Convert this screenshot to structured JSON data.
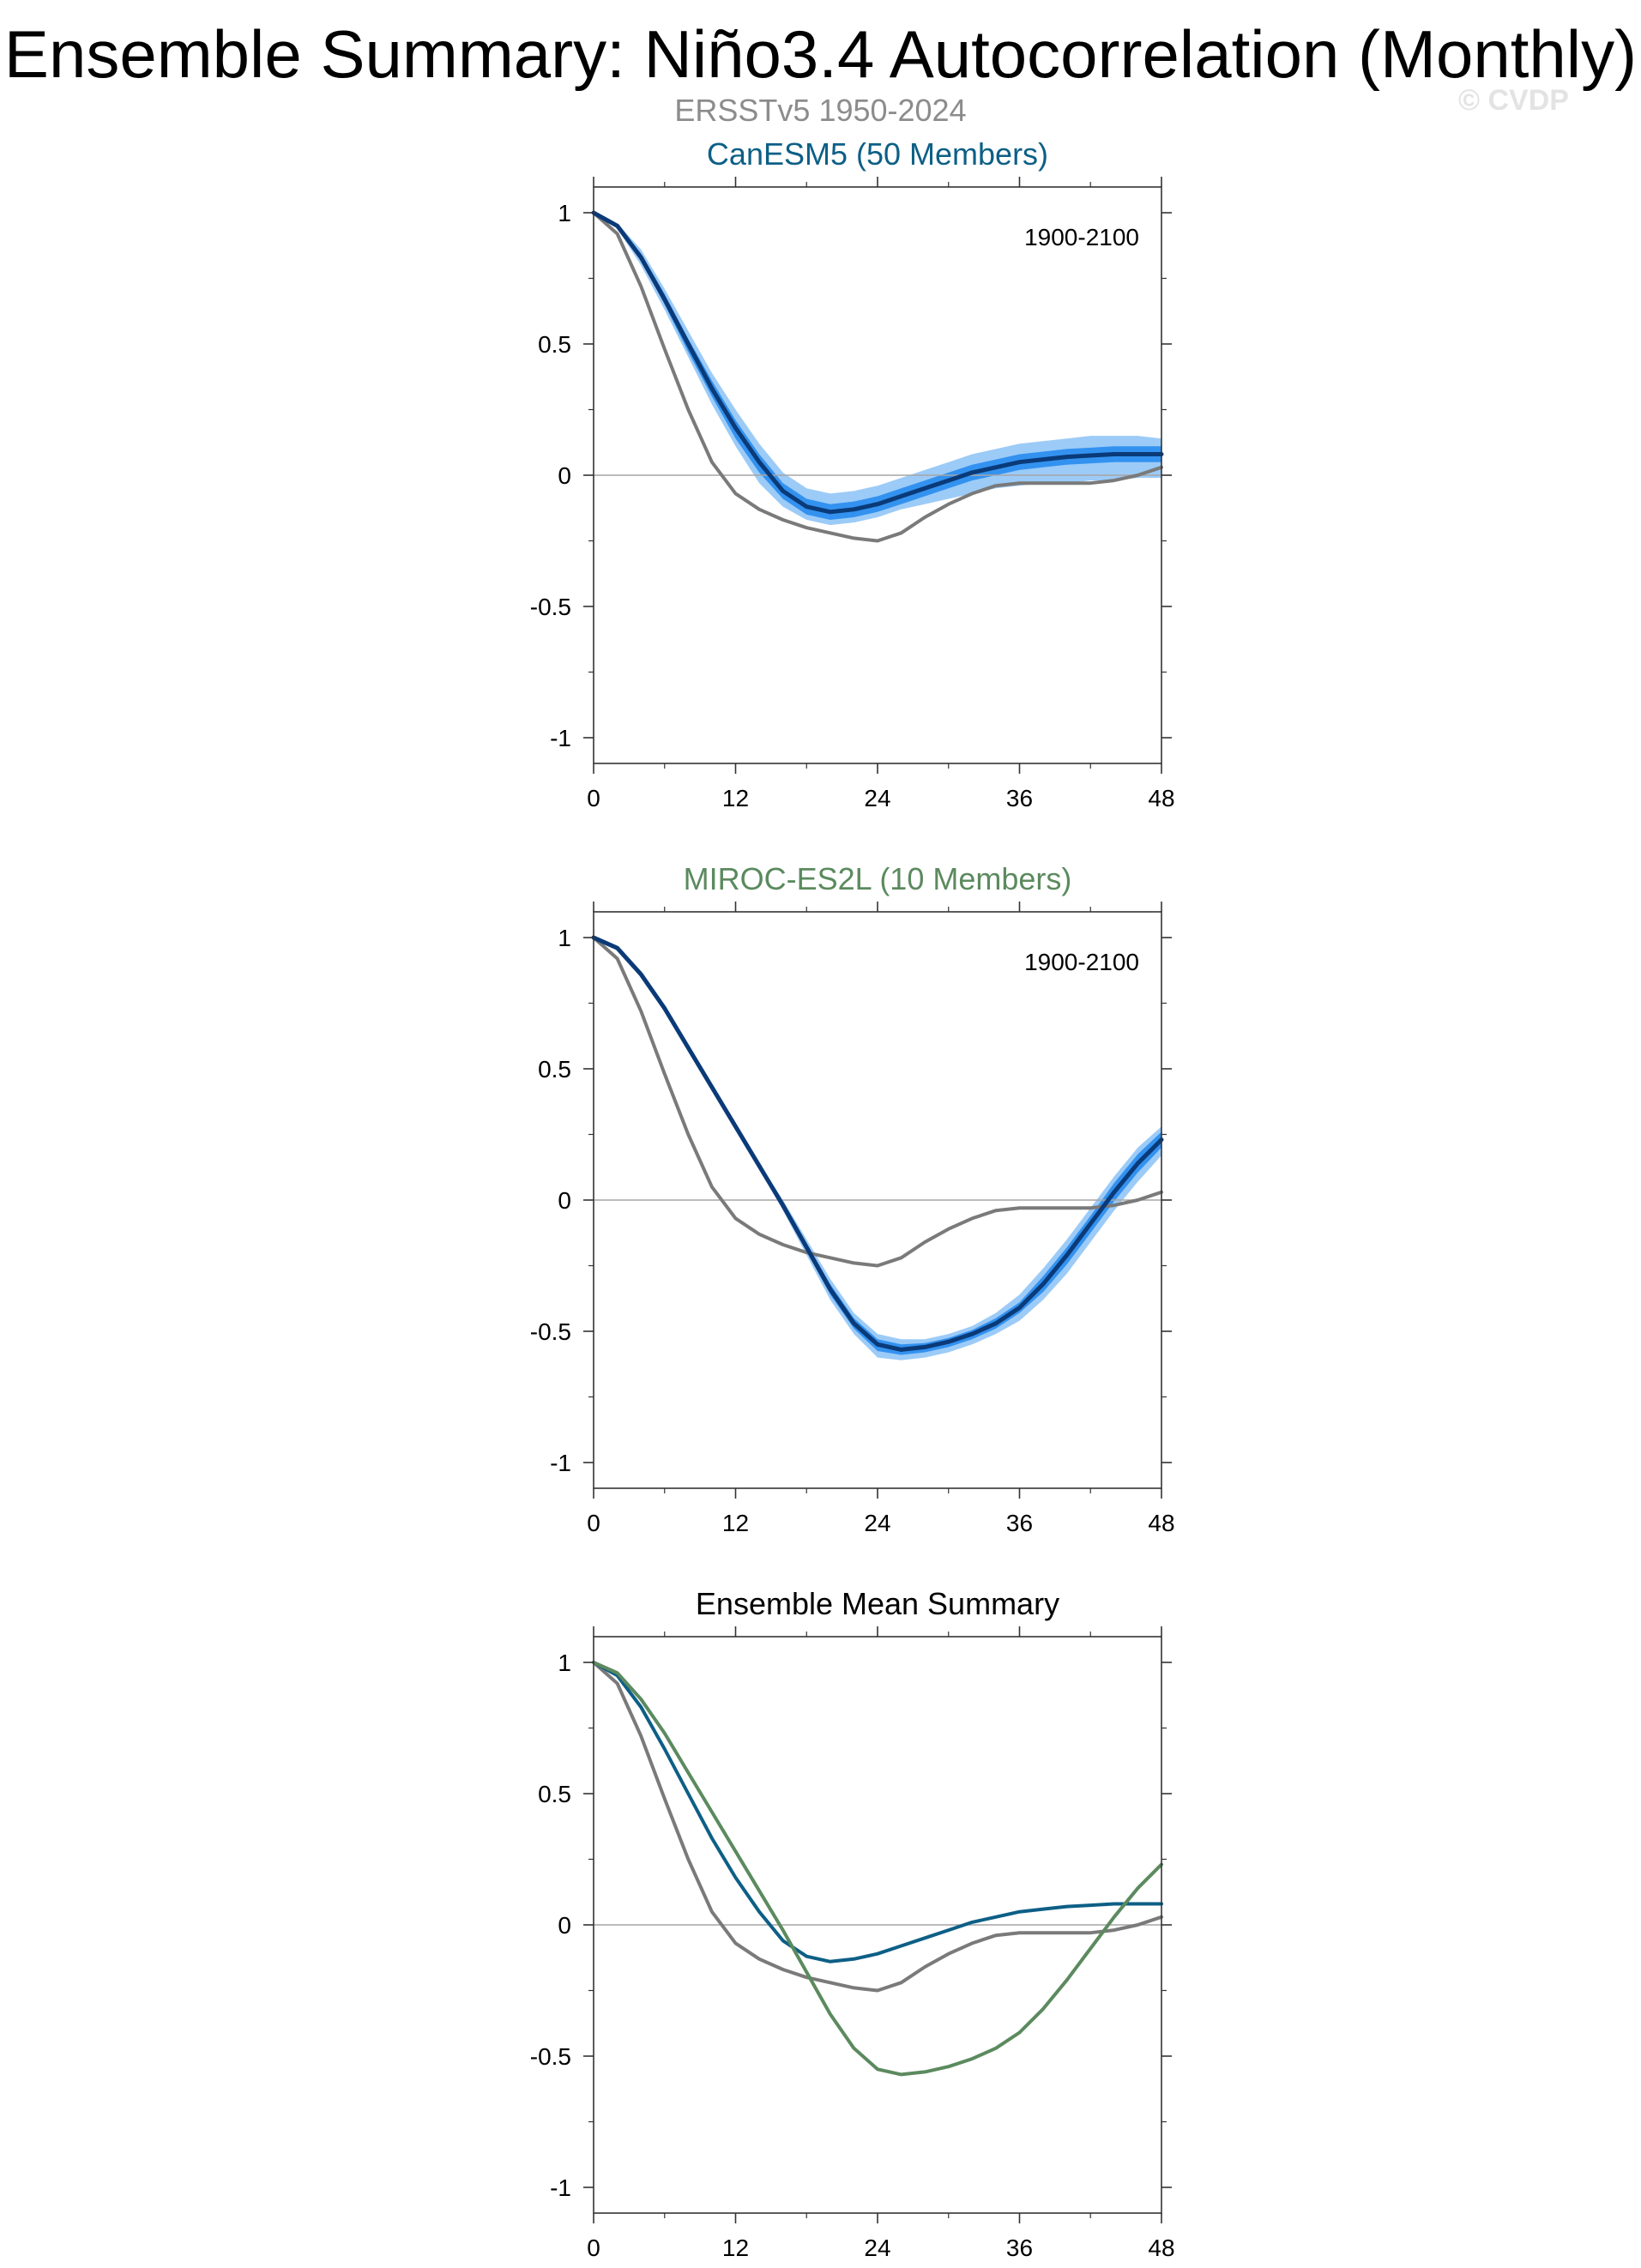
{
  "header": {
    "title": "Ensemble Summary: Niño3.4 Autocorrelation (Monthly)",
    "subtitle": "ERSSTv5 1950-2024",
    "watermark": "© CVDP"
  },
  "colors": {
    "observed": "#7a7a7a",
    "canesm5": "#0d5f86",
    "miroc": "#5b8a5e",
    "ens_mean_line": "#0a3a78",
    "spread_outer": "#9ccbf7",
    "spread_inner": "#3392f0",
    "zero_line": "#a6a6a6"
  },
  "chart_data": [
    {
      "type": "line",
      "title": "CanESM5 (50 Members)",
      "title_color": "#0d5f86",
      "period_label": "1900-2100",
      "xlim": [
        0,
        48
      ],
      "ylim": [
        -1,
        1
      ],
      "x_ticks": [
        0,
        12,
        24,
        36,
        48
      ],
      "y_ticks": [
        1,
        0.5,
        0,
        -0.5,
        -1
      ],
      "y_tick_labels": [
        "1",
        "0.5",
        "0",
        "-0.5",
        "-1"
      ],
      "x": [
        0,
        2,
        4,
        6,
        8,
        10,
        12,
        14,
        16,
        18,
        20,
        22,
        24,
        26,
        28,
        30,
        32,
        34,
        36,
        38,
        40,
        42,
        44,
        46,
        48
      ],
      "series": [
        {
          "key": "observed",
          "values": [
            1.0,
            0.92,
            0.72,
            0.48,
            0.25,
            0.05,
            -0.07,
            -0.13,
            -0.17,
            -0.2,
            -0.22,
            -0.24,
            -0.25,
            -0.22,
            -0.16,
            -0.11,
            -0.07,
            -0.04,
            -0.03,
            -0.03,
            -0.03,
            -0.03,
            -0.02,
            0.0,
            0.03
          ]
        },
        {
          "key": "ensemble_mean",
          "values": [
            1.0,
            0.95,
            0.83,
            0.67,
            0.5,
            0.33,
            0.18,
            0.05,
            -0.06,
            -0.12,
            -0.14,
            -0.13,
            -0.11,
            -0.08,
            -0.05,
            -0.02,
            0.01,
            0.03,
            0.05,
            0.06,
            0.07,
            0.075,
            0.08,
            0.08,
            0.08
          ]
        }
      ],
      "spread_outer": {
        "lower": [
          1.0,
          0.94,
          0.8,
          0.63,
          0.45,
          0.27,
          0.11,
          -0.03,
          -0.12,
          -0.17,
          -0.19,
          -0.18,
          -0.16,
          -0.13,
          -0.11,
          -0.09,
          -0.07,
          -0.05,
          -0.04,
          -0.03,
          -0.03,
          -0.02,
          -0.02,
          -0.01,
          -0.01
        ],
        "upper": [
          1.0,
          0.96,
          0.86,
          0.71,
          0.55,
          0.39,
          0.25,
          0.12,
          0.01,
          -0.05,
          -0.07,
          -0.06,
          -0.04,
          -0.01,
          0.02,
          0.05,
          0.08,
          0.1,
          0.12,
          0.13,
          0.14,
          0.15,
          0.15,
          0.15,
          0.14
        ]
      },
      "spread_inner": {
        "lower": [
          1.0,
          0.945,
          0.82,
          0.65,
          0.47,
          0.3,
          0.14,
          0.01,
          -0.09,
          -0.15,
          -0.17,
          -0.16,
          -0.14,
          -0.11,
          -0.08,
          -0.05,
          -0.02,
          0.0,
          0.02,
          0.03,
          0.04,
          0.045,
          0.05,
          0.05,
          0.05
        ],
        "upper": [
          1.0,
          0.955,
          0.845,
          0.69,
          0.52,
          0.36,
          0.21,
          0.08,
          -0.03,
          -0.09,
          -0.11,
          -0.1,
          -0.08,
          -0.05,
          -0.02,
          0.01,
          0.04,
          0.06,
          0.08,
          0.09,
          0.1,
          0.105,
          0.11,
          0.11,
          0.11
        ]
      }
    },
    {
      "type": "line",
      "title": "MIROC-ES2L (10 Members)",
      "title_color": "#5b8a5e",
      "period_label": "1900-2100",
      "xlim": [
        0,
        48
      ],
      "ylim": [
        -1,
        1
      ],
      "x_ticks": [
        0,
        12,
        24,
        36,
        48
      ],
      "y_ticks": [
        1,
        0.5,
        0,
        -0.5,
        -1
      ],
      "y_tick_labels": [
        "1",
        "0.5",
        "0",
        "-0.5",
        "-1"
      ],
      "x": [
        0,
        2,
        4,
        6,
        8,
        10,
        12,
        14,
        16,
        18,
        20,
        22,
        24,
        26,
        28,
        30,
        32,
        34,
        36,
        38,
        40,
        42,
        44,
        46,
        48
      ],
      "series": [
        {
          "key": "observed",
          "values": [
            1.0,
            0.92,
            0.72,
            0.48,
            0.25,
            0.05,
            -0.07,
            -0.13,
            -0.17,
            -0.2,
            -0.22,
            -0.24,
            -0.25,
            -0.22,
            -0.16,
            -0.11,
            -0.07,
            -0.04,
            -0.03,
            -0.03,
            -0.03,
            -0.03,
            -0.02,
            0.0,
            0.03
          ]
        },
        {
          "key": "ensemble_mean",
          "values": [
            1.0,
            0.96,
            0.86,
            0.73,
            0.58,
            0.43,
            0.28,
            0.13,
            -0.02,
            -0.18,
            -0.34,
            -0.47,
            -0.55,
            -0.57,
            -0.56,
            -0.54,
            -0.51,
            -0.47,
            -0.41,
            -0.32,
            -0.21,
            -0.09,
            0.03,
            0.14,
            0.23
          ]
        }
      ],
      "spread_outer": {
        "lower": [
          1.0,
          0.955,
          0.85,
          0.72,
          0.57,
          0.42,
          0.27,
          0.12,
          -0.04,
          -0.21,
          -0.38,
          -0.51,
          -0.6,
          -0.61,
          -0.6,
          -0.58,
          -0.55,
          -0.51,
          -0.46,
          -0.38,
          -0.28,
          -0.16,
          -0.04,
          0.07,
          0.17
        ],
        "upper": [
          1.0,
          0.965,
          0.87,
          0.74,
          0.59,
          0.44,
          0.29,
          0.14,
          0.0,
          -0.15,
          -0.3,
          -0.43,
          -0.51,
          -0.53,
          -0.53,
          -0.51,
          -0.48,
          -0.43,
          -0.36,
          -0.26,
          -0.15,
          -0.03,
          0.09,
          0.2,
          0.28
        ]
      },
      "spread_inner": {
        "lower": [
          1.0,
          0.958,
          0.855,
          0.725,
          0.575,
          0.425,
          0.275,
          0.125,
          -0.03,
          -0.195,
          -0.36,
          -0.49,
          -0.575,
          -0.59,
          -0.58,
          -0.56,
          -0.53,
          -0.49,
          -0.43,
          -0.35,
          -0.245,
          -0.125,
          -0.005,
          0.105,
          0.2
        ],
        "upper": [
          1.0,
          0.962,
          0.865,
          0.735,
          0.585,
          0.435,
          0.285,
          0.135,
          -0.01,
          -0.165,
          -0.32,
          -0.45,
          -0.53,
          -0.55,
          -0.545,
          -0.525,
          -0.495,
          -0.45,
          -0.39,
          -0.29,
          -0.18,
          -0.06,
          0.065,
          0.175,
          0.26
        ]
      }
    },
    {
      "type": "line",
      "title": "Ensemble Mean Summary",
      "title_color": "#000000",
      "period_label": "",
      "xlim": [
        0,
        48
      ],
      "ylim": [
        -1,
        1
      ],
      "x_ticks": [
        0,
        12,
        24,
        36,
        48
      ],
      "y_ticks": [
        1,
        0.5,
        0,
        -0.5,
        -1
      ],
      "y_tick_labels": [
        "1",
        "0.5",
        "0",
        "-0.5",
        "-1"
      ],
      "x": [
        0,
        2,
        4,
        6,
        8,
        10,
        12,
        14,
        16,
        18,
        20,
        22,
        24,
        26,
        28,
        30,
        32,
        34,
        36,
        38,
        40,
        42,
        44,
        46,
        48
      ],
      "series": [
        {
          "key": "observed",
          "values": [
            1.0,
            0.92,
            0.72,
            0.48,
            0.25,
            0.05,
            -0.07,
            -0.13,
            -0.17,
            -0.2,
            -0.22,
            -0.24,
            -0.25,
            -0.22,
            -0.16,
            -0.11,
            -0.07,
            -0.04,
            -0.03,
            -0.03,
            -0.03,
            -0.03,
            -0.02,
            0.0,
            0.03
          ]
        },
        {
          "key": "canesm5",
          "values": [
            1.0,
            0.95,
            0.83,
            0.67,
            0.5,
            0.33,
            0.18,
            0.05,
            -0.06,
            -0.12,
            -0.14,
            -0.13,
            -0.11,
            -0.08,
            -0.05,
            -0.02,
            0.01,
            0.03,
            0.05,
            0.06,
            0.07,
            0.075,
            0.08,
            0.08,
            0.08
          ]
        },
        {
          "key": "miroc",
          "values": [
            1.0,
            0.96,
            0.86,
            0.73,
            0.58,
            0.43,
            0.28,
            0.13,
            -0.02,
            -0.18,
            -0.34,
            -0.47,
            -0.55,
            -0.57,
            -0.56,
            -0.54,
            -0.51,
            -0.47,
            -0.41,
            -0.32,
            -0.21,
            -0.09,
            0.03,
            0.14,
            0.23
          ]
        }
      ]
    }
  ]
}
